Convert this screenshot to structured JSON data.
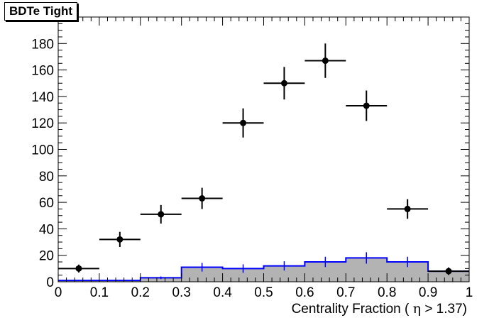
{
  "chart_data": {
    "type": "histogram",
    "title": "BDTe Tight",
    "xlabel_parts": {
      "pre": "Centrality Fraction (",
      "symbol": "η",
      "post": "> 1.37)"
    },
    "xlim": [
      0,
      1
    ],
    "ylim": [
      0,
      200
    ],
    "x_ticks": [
      "0",
      "0.1",
      "0.2",
      "0.3",
      "0.4",
      "0.5",
      "0.6",
      "0.7",
      "0.8",
      "0.9",
      "1"
    ],
    "y_ticks": [
      "0",
      "20",
      "40",
      "60",
      "80",
      "100",
      "120",
      "140",
      "160",
      "180",
      "200"
    ],
    "bin_edges": [
      0,
      0.1,
      0.2,
      0.3,
      0.4,
      0.5,
      0.6,
      0.7,
      0.8,
      0.9,
      1.0
    ],
    "data_points": {
      "x": [
        0.05,
        0.15,
        0.25,
        0.35,
        0.45,
        0.55,
        0.65,
        0.75,
        0.85,
        0.95
      ],
      "y": [
        10,
        32,
        51,
        63,
        120,
        150,
        167,
        133,
        55,
        8
      ],
      "yerr": [
        3,
        5.7,
        7,
        8,
        11,
        12.3,
        13,
        11.5,
        7.4,
        2.8
      ],
      "xerr": 0.05,
      "color": "#000000"
    },
    "background_hist": {
      "values": [
        1,
        1,
        3,
        11,
        10,
        12,
        15,
        18,
        15,
        8
      ],
      "errors": [
        0.5,
        0.5,
        1,
        3.3,
        3.2,
        3.5,
        3.9,
        4.3,
        3.9,
        2.8
      ],
      "fill": "#b3b3b3",
      "line": "#0000ff"
    },
    "grid": false
  }
}
